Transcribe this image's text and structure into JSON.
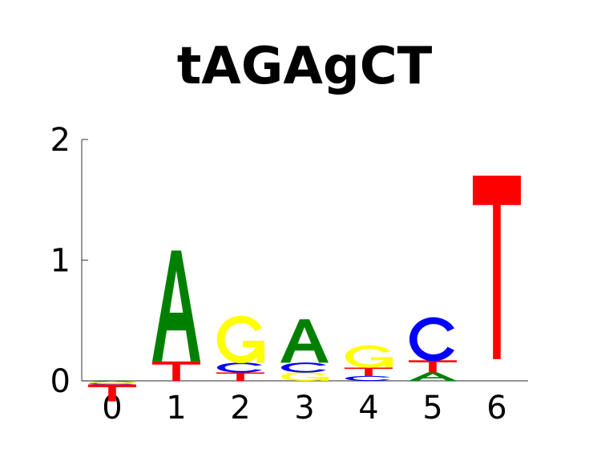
{
  "chart_data": {
    "type": "sequence-logo",
    "title": "tAGAgCT",
    "xlabel": "",
    "ylabel": "",
    "ylim": [
      0,
      2
    ],
    "yticks": [
      "0",
      "1",
      "2"
    ],
    "positions": [
      "0",
      "1",
      "2",
      "3",
      "4",
      "5",
      "6"
    ],
    "stacks": [
      {
        "position": "0",
        "letters": [
          {
            "base": "A",
            "height": 0.01,
            "below": true
          },
          {
            "base": "G",
            "height": 0.01,
            "below": true
          },
          {
            "base": "C",
            "height": 0.01,
            "below": true
          },
          {
            "base": "T",
            "height": 0.14,
            "below": true
          }
        ]
      },
      {
        "position": "1",
        "letters": [
          {
            "base": "T",
            "height": 0.16
          },
          {
            "base": "A",
            "height": 0.92
          }
        ]
      },
      {
        "position": "2",
        "letters": [
          {
            "base": "T",
            "height": 0.07
          },
          {
            "base": "C",
            "height": 0.08
          },
          {
            "base": "G",
            "height": 0.38
          }
        ]
      },
      {
        "position": "3",
        "letters": [
          {
            "base": "G",
            "height": 0.07
          },
          {
            "base": "C",
            "height": 0.08
          },
          {
            "base": "A",
            "height": 0.36
          }
        ]
      },
      {
        "position": "4",
        "letters": [
          {
            "base": "C",
            "height": 0.04
          },
          {
            "base": "T",
            "height": 0.07
          },
          {
            "base": "G",
            "height": 0.18
          }
        ]
      },
      {
        "position": "5",
        "letters": [
          {
            "base": "A",
            "height": 0.07
          },
          {
            "base": "T",
            "height": 0.1
          },
          {
            "base": "C",
            "height": 0.35
          }
        ]
      },
      {
        "position": "6",
        "letters": [
          {
            "base": "T",
            "height": 1.52,
            "offset": 0.18
          }
        ]
      }
    ],
    "colors": {
      "A": "#008000",
      "C": "#0000ff",
      "G": "#ffff00",
      "T": "#ff0000"
    },
    "grid": false,
    "legend": "none"
  }
}
